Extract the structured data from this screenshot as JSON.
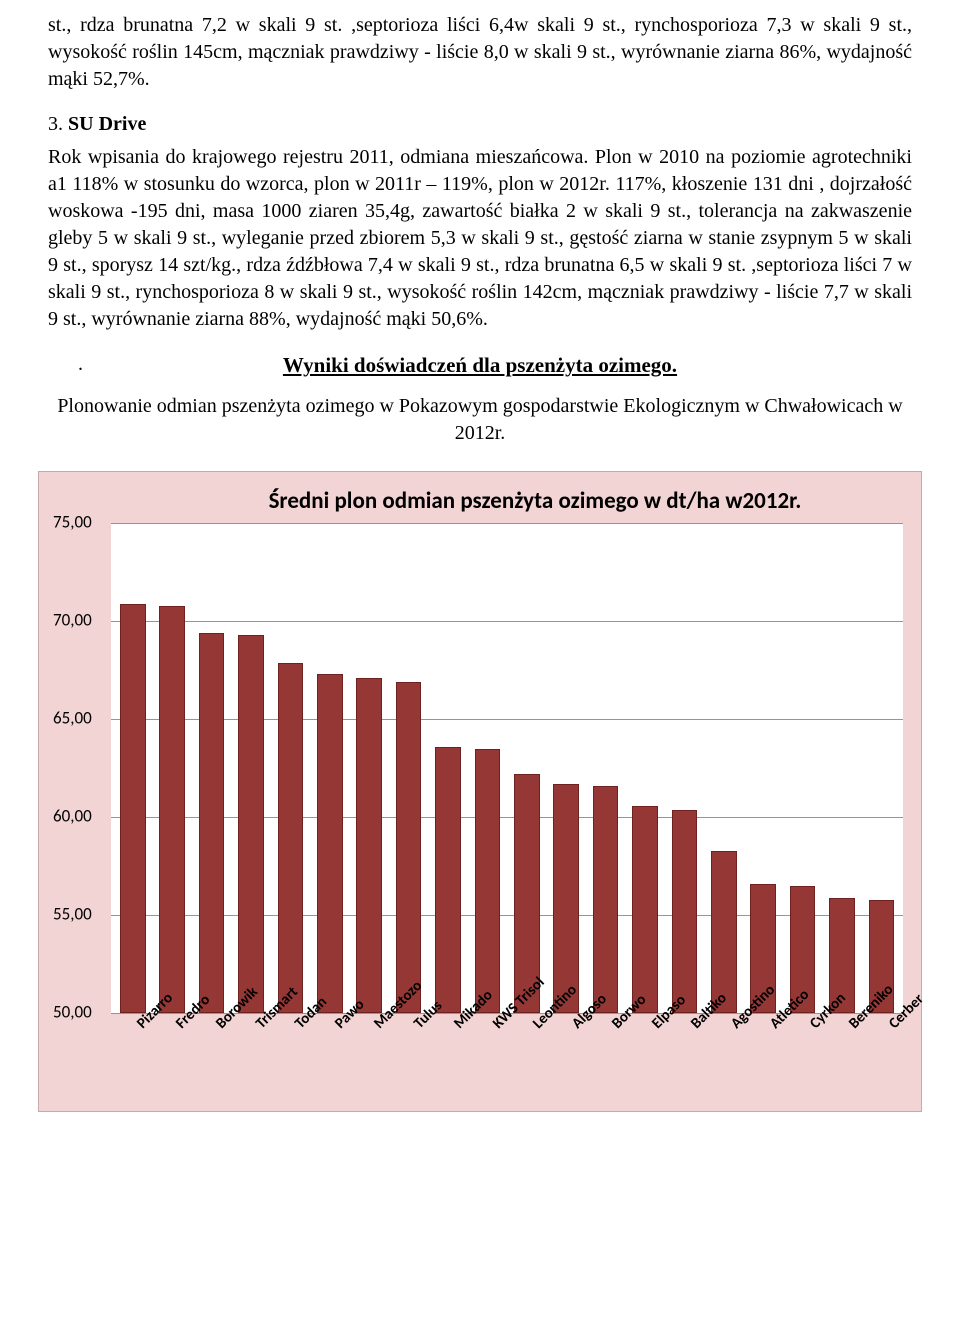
{
  "para1": "st., rdza brunatna 7,2 w skali 9 st. ,septorioza liści 6,4w skali 9 st., rynchosporioza 7,3 w skali 9 st., wysokość roślin 145cm, mączniak prawdziwy - liście 8,0 w skali 9 st., wyrównanie ziarna 86%, wydajność mąki 52,7%.",
  "item3": {
    "num": "3.",
    "title": "SU Drive",
    "body": "Rok wpisania do krajowego rejestru 2011, odmiana mieszańcowa. Plon w 2010 na poziomie agrotechniki a1 118% w stosunku do wzorca, plon w 2011r – 119%, plon w 2012r. 117%, kłoszenie 131 dni , dojrzałość woskowa -195 dni, masa 1000 ziaren 35,4g, zawartość białka 2 w skali 9 st., tolerancja na zakwaszenie gleby 5 w skali 9 st., wyleganie przed zbiorem 5,3 w skali 9 st., gęstość ziarna w stanie zsypnym 5 w skali 9 st., sporysz 14 szt/kg., rdza źdźbłowa 7,4 w skali 9 st., rdza brunatna 6,5 w skali 9 st. ,septorioza liści 7 w skali 9 st., rynchosporioza 8 w skali 9 st., wysokość roślin 142cm, mączniak prawdziwy - liście 7,7 w skali 9 st., wyrównanie ziarna 88%, wydajność mąki 50,6%."
  },
  "section_heading": "Wyniki doświadczeń dla pszenżyta ozimego.",
  "subheading": "Plonowanie odmian pszenżyta ozimego w Pokazowym gospodarstwie Ekologicznym w Chwałowicach w 2012r.",
  "chart": {
    "type": "bar",
    "title": "Średni plon odmian pszenżyta ozimego w dt/ha w2012r.",
    "title_fontsize": 23,
    "title_fontweight": "bold",
    "title_fontfamily": "Calibri",
    "background_color": "#f2d4d4",
    "plot_background": "#ffffff",
    "grid_color": "#a09090",
    "bar_color": "#953735",
    "bar_border_color": "#6e2220",
    "bar_width_ratio": 0.65,
    "ymin": 50.0,
    "ymax": 75.0,
    "ytick_step": 5.0,
    "yticks": [
      "50,00",
      "55,00",
      "60,00",
      "65,00",
      "70,00",
      "75,00"
    ],
    "ylabel_fontsize": 17,
    "ylabel_fontfamily": "Calibri",
    "xlabel_rotation_deg": -45,
    "xlabel_fontsize": 15,
    "xlabel_fontweight": "bold",
    "categories": [
      "Pizarro",
      "Fredro",
      "Borowik",
      "Trismart",
      "Todan",
      "Pawo",
      "Maestozo",
      "Tulus",
      "Mikado",
      "KWS Trisol",
      "Leontino",
      "Algoso",
      "Borwo",
      "Elpaso",
      "Baltiko",
      "Agostino",
      "Atletico",
      "Cyrkon",
      "Bereniko",
      "Cerber"
    ],
    "values": [
      70.9,
      70.8,
      69.4,
      69.3,
      67.9,
      67.3,
      67.1,
      66.9,
      63.6,
      63.5,
      62.2,
      61.7,
      61.6,
      60.6,
      60.4,
      58.3,
      56.6,
      56.5,
      55.9,
      55.8
    ]
  }
}
